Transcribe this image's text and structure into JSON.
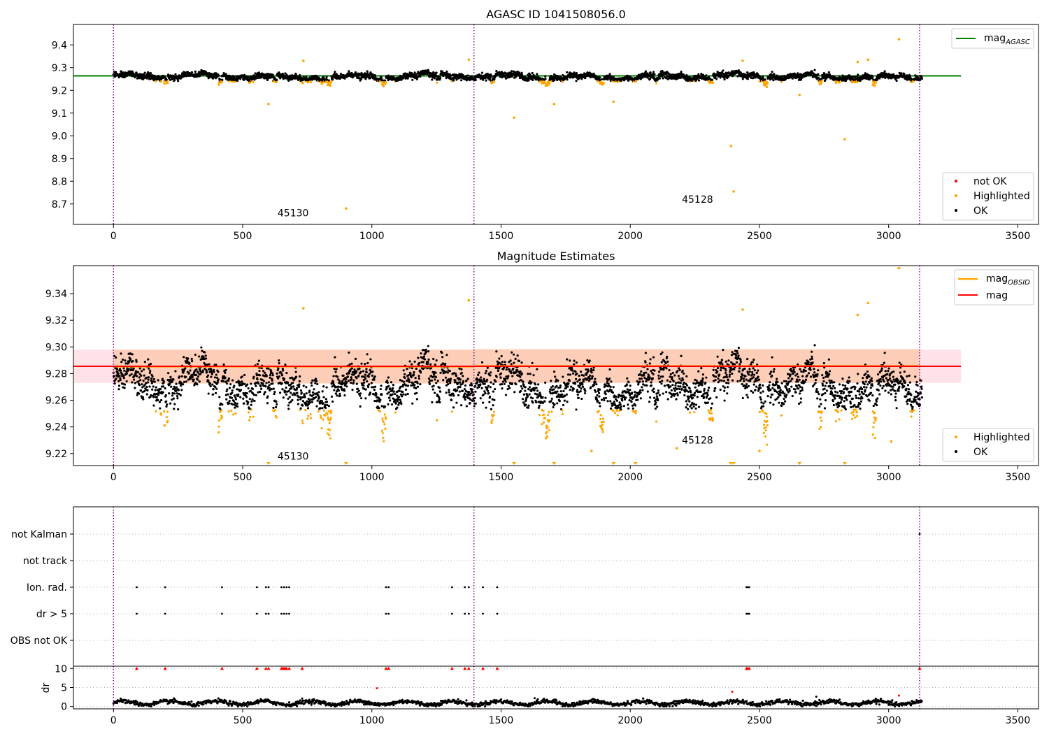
{
  "colors": {
    "ok": "#000000",
    "highlighted": "#ffa500",
    "not_ok": "#ff0000",
    "agasc_line": "#008000",
    "mag_line": "#ff0000",
    "obsid_line": "#ffa500",
    "obsid_band": "#ffb380",
    "mag_band": "#ffc0cb",
    "obsid_boundary": "#800080"
  },
  "chart_data": [
    {
      "type": "scatter",
      "title": "AGASC ID 1041508056.0",
      "xlim": [
        -155,
        3580
      ],
      "ylim": [
        8.61,
        9.49
      ],
      "xticks": [
        0,
        500,
        1000,
        1500,
        2000,
        2500,
        3000,
        3500
      ],
      "yticks": [
        8.7,
        8.8,
        8.9,
        9.0,
        9.1,
        9.2,
        9.3,
        9.4
      ],
      "ytick_labels": [
        "8.7",
        "8.8",
        "8.9",
        "9.0",
        "9.1",
        "9.2",
        "9.3",
        "9.4"
      ],
      "agasc_mag": 9.264,
      "agasc_line_x": [
        -155,
        3280
      ],
      "obsid_boundaries": [
        0,
        1395,
        3120
      ],
      "obsid_labels": [
        {
          "text": "45130",
          "x": 635,
          "y": 8.645
        },
        {
          "text": "45128",
          "x": 2200,
          "y": 8.705
        }
      ],
      "legend_lines": [
        {
          "name": "mag",
          "sub": "AGASC",
          "color": "#008000"
        }
      ],
      "legend_points": [
        {
          "name": "not OK",
          "color": "#ff0000"
        },
        {
          "name": "Highlighted",
          "color": "#ffa500"
        },
        {
          "name": "OK",
          "color": "#000000"
        }
      ],
      "highlighted_outliers": [
        {
          "x": 600,
          "y": 9.14
        },
        {
          "x": 735,
          "y": 9.33
        },
        {
          "x": 900,
          "y": 8.68
        },
        {
          "x": 1375,
          "y": 9.335
        },
        {
          "x": 1550,
          "y": 9.08
        },
        {
          "x": 1705,
          "y": 9.14
        },
        {
          "x": 1935,
          "y": 9.15
        },
        {
          "x": 2390,
          "y": 8.955
        },
        {
          "x": 2400,
          "y": 8.755
        },
        {
          "x": 2435,
          "y": 9.33
        },
        {
          "x": 2655,
          "y": 9.18
        },
        {
          "x": 2830,
          "y": 8.985
        },
        {
          "x": 2880,
          "y": 9.325
        },
        {
          "x": 2920,
          "y": 9.335
        },
        {
          "x": 3040,
          "y": 9.425
        }
      ]
    },
    {
      "type": "scatter",
      "title": "Magnitude Estimates",
      "xlim": [
        -155,
        3580
      ],
      "ylim": [
        9.211,
        9.361
      ],
      "xticks": [
        0,
        500,
        1000,
        1500,
        2000,
        2500,
        3000,
        3500
      ],
      "yticks": [
        9.22,
        9.24,
        9.26,
        9.28,
        9.3,
        9.32,
        9.34
      ],
      "ytick_labels": [
        "9.22",
        "9.24",
        "9.26",
        "9.28",
        "9.30",
        "9.32",
        "9.34"
      ],
      "mag": 9.2855,
      "mag_band": [
        9.273,
        9.298
      ],
      "mag_line_x": [
        -155,
        3280
      ],
      "obsid_mag": [
        {
          "x0": 0,
          "x1": 1395,
          "value": 9.2853,
          "band": [
            9.2725,
            9.298
          ]
        },
        {
          "x0": 1395,
          "x1": 3120,
          "value": 9.2857,
          "band": [
            9.273,
            9.2985
          ]
        }
      ],
      "obsid_boundaries": [
        0,
        1395,
        3120
      ],
      "obsid_labels": [
        {
          "text": "45130",
          "x": 635,
          "y": 9.2155
        },
        {
          "text": "45128",
          "x": 2200,
          "y": 9.2275
        }
      ],
      "legend_lines": [
        {
          "name": "mag",
          "sub": "OBSID",
          "color": "#ffa500"
        },
        {
          "name": "mag",
          "sub": "",
          "color": "#ff0000"
        }
      ],
      "legend_points": [
        {
          "name": "Highlighted",
          "color": "#ffa500"
        },
        {
          "name": "OK",
          "color": "#000000"
        }
      ],
      "clipped_low_x": [
        600,
        900,
        1550,
        1705,
        1935,
        2020,
        2390,
        2400,
        2655,
        2830
      ],
      "clipped_high_x": [
        3040
      ],
      "highlighted_outliers": [
        {
          "x": 735,
          "y": 9.329
        },
        {
          "x": 1375,
          "y": 9.335
        },
        {
          "x": 2435,
          "y": 9.328
        },
        {
          "x": 2880,
          "y": 9.324
        },
        {
          "x": 2920,
          "y": 9.333
        },
        {
          "x": 2180,
          "y": 9.224
        },
        {
          "x": 1850,
          "y": 9.222
        },
        {
          "x": 2500,
          "y": 9.222
        },
        {
          "x": 3010,
          "y": 9.229
        }
      ]
    },
    {
      "type": "scatter",
      "title": "",
      "xlim": [
        -155,
        3580
      ],
      "categories": [
        "not Kalman",
        "not track",
        "Ion. rad.",
        "dr > 5",
        "OBS not OK"
      ],
      "obsid_boundaries": [
        0,
        1395,
        3120
      ],
      "flag_x": [
        90,
        200,
        420,
        555,
        590,
        600,
        650,
        660,
        670,
        680,
        1055,
        1065,
        1310,
        1360,
        1375,
        1430,
        1485,
        2450,
        2455,
        2460
      ],
      "not_kalman_x": [
        3120
      ]
    },
    {
      "type": "scatter",
      "title": "",
      "ylabel": "dr",
      "xlim": [
        -155,
        3580
      ],
      "ylim": [
        -0.6,
        10.6
      ],
      "yticks": [
        0,
        5,
        10
      ],
      "ytick_labels": [
        "0",
        "5",
        "10"
      ],
      "xticks": [
        0,
        500,
        1000,
        1500,
        2000,
        2500,
        3000,
        3500
      ],
      "obsid_boundaries": [
        0,
        1395,
        3120
      ],
      "clipped_x": [
        90,
        200,
        420,
        555,
        590,
        600,
        650,
        655,
        660,
        665,
        670,
        680,
        730,
        1055,
        1065,
        1310,
        1360,
        1375,
        1430,
        1485,
        2450,
        2455,
        2460,
        3120
      ],
      "extra_points": [
        {
          "x": 1020,
          "y": 4.8,
          "color": "#ff0000"
        },
        {
          "x": 2395,
          "y": 3.9,
          "color": "#ff0000"
        },
        {
          "x": 3040,
          "y": 2.9,
          "color": "#ff0000"
        },
        {
          "x": 730,
          "y": 2.1,
          "color": "#000000"
        },
        {
          "x": 1630,
          "y": 2.2,
          "color": "#000000"
        },
        {
          "x": 2720,
          "y": 2.6,
          "color": "#000000"
        }
      ]
    }
  ]
}
